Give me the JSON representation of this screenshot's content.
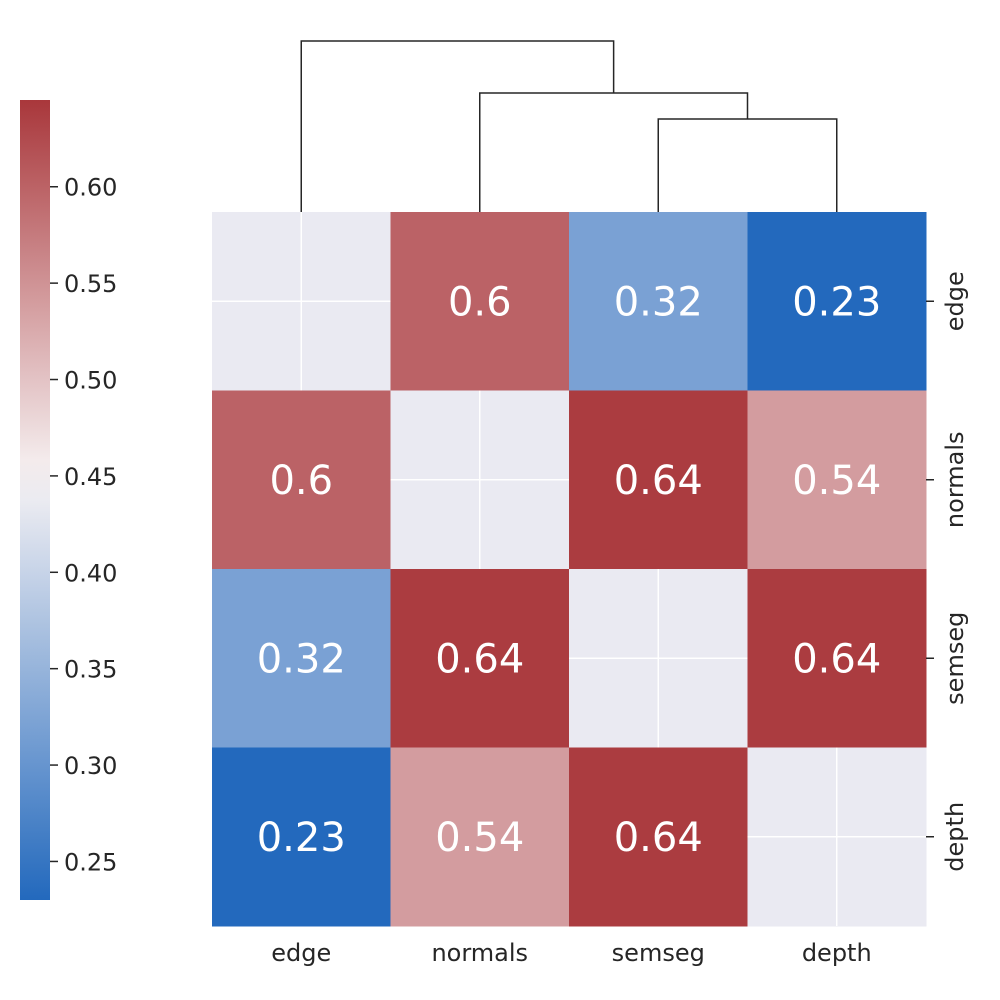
{
  "chart_data": {
    "type": "heatmap",
    "subtype": "clustermap",
    "title": "",
    "xlabel": "",
    "ylabel": "",
    "row_labels": [
      "edge",
      "normals",
      "semseg",
      "depth"
    ],
    "col_labels": [
      "edge",
      "normals",
      "semseg",
      "depth"
    ],
    "values": [
      [
        null,
        0.6,
        0.32,
        0.23
      ],
      [
        0.6,
        null,
        0.64,
        0.54
      ],
      [
        0.32,
        0.64,
        null,
        0.64
      ],
      [
        0.23,
        0.54,
        0.64,
        null
      ]
    ],
    "annotations": [
      [
        "",
        "0.6",
        "0.32",
        "0.23"
      ],
      [
        "0.6",
        "",
        "0.64",
        "0.54"
      ],
      [
        "0.32",
        "0.64",
        "",
        "0.64"
      ],
      [
        "0.23",
        "0.54",
        "0.64",
        ""
      ]
    ],
    "missing_color": "#eaeaf2",
    "grid_color": "#ffffff",
    "colorbar": {
      "vmin": 0.23,
      "vmax": 0.645,
      "ticks": [
        0.25,
        0.3,
        0.35,
        0.4,
        0.45,
        0.5,
        0.55,
        0.6
      ],
      "tick_labels": [
        "0.25",
        "0.30",
        "0.35",
        "0.40",
        "0.45",
        "0.50",
        "0.55",
        "0.60"
      ],
      "center": 0.45,
      "colormap": {
        "low": "#2369bd",
        "mid": "#f7f3f4",
        "high": "#a9373b"
      }
    },
    "column_dendrogram": {
      "merges": [
        {
          "left": "semseg",
          "right": "depth",
          "height": 1
        },
        {
          "left": "normals",
          "right": "semseg+depth",
          "height": 2
        },
        {
          "left": "edge",
          "right": "normals+semseg+depth",
          "height": 3
        }
      ]
    },
    "colors": {
      "text": "#262626",
      "dendrogram": "#262626",
      "cell_text": "#ffffff"
    }
  }
}
